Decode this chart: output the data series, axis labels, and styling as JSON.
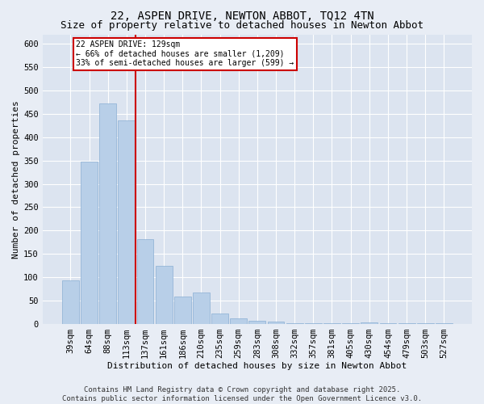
{
  "title1": "22, ASPEN DRIVE, NEWTON ABBOT, TQ12 4TN",
  "title2": "Size of property relative to detached houses in Newton Abbot",
  "xlabel": "Distribution of detached houses by size in Newton Abbot",
  "ylabel": "Number of detached properties",
  "categories": [
    "39sqm",
    "64sqm",
    "88sqm",
    "113sqm",
    "137sqm",
    "161sqm",
    "186sqm",
    "210sqm",
    "235sqm",
    "259sqm",
    "283sqm",
    "308sqm",
    "332sqm",
    "357sqm",
    "381sqm",
    "405sqm",
    "430sqm",
    "454sqm",
    "479sqm",
    "503sqm",
    "527sqm"
  ],
  "values": [
    93,
    348,
    472,
    435,
    181,
    124,
    58,
    67,
    22,
    12,
    7,
    5,
    2,
    1,
    1,
    1,
    4,
    1,
    1,
    1,
    1
  ],
  "bar_color": "#b8cfe8",
  "bar_edge_color": "#8aafd4",
  "vline_x_index": 3,
  "vline_color": "#cc0000",
  "annotation_text": "22 ASPEN DRIVE: 129sqm\n← 66% of detached houses are smaller (1,209)\n33% of semi-detached houses are larger (599) →",
  "annotation_box_color": "#ffffff",
  "annotation_box_edge": "#cc0000",
  "bg_color": "#e8edf5",
  "plot_bg_color": "#dce4f0",
  "grid_color": "#ffffff",
  "footer_text": "Contains HM Land Registry data © Crown copyright and database right 2025.\nContains public sector information licensed under the Open Government Licence v3.0.",
  "ylim": [
    0,
    620
  ],
  "yticks": [
    0,
    50,
    100,
    150,
    200,
    250,
    300,
    350,
    400,
    450,
    500,
    550,
    600
  ],
  "title_fontsize": 10,
  "subtitle_fontsize": 9,
  "label_fontsize": 8,
  "tick_fontsize": 7.5,
  "footer_fontsize": 6.5
}
